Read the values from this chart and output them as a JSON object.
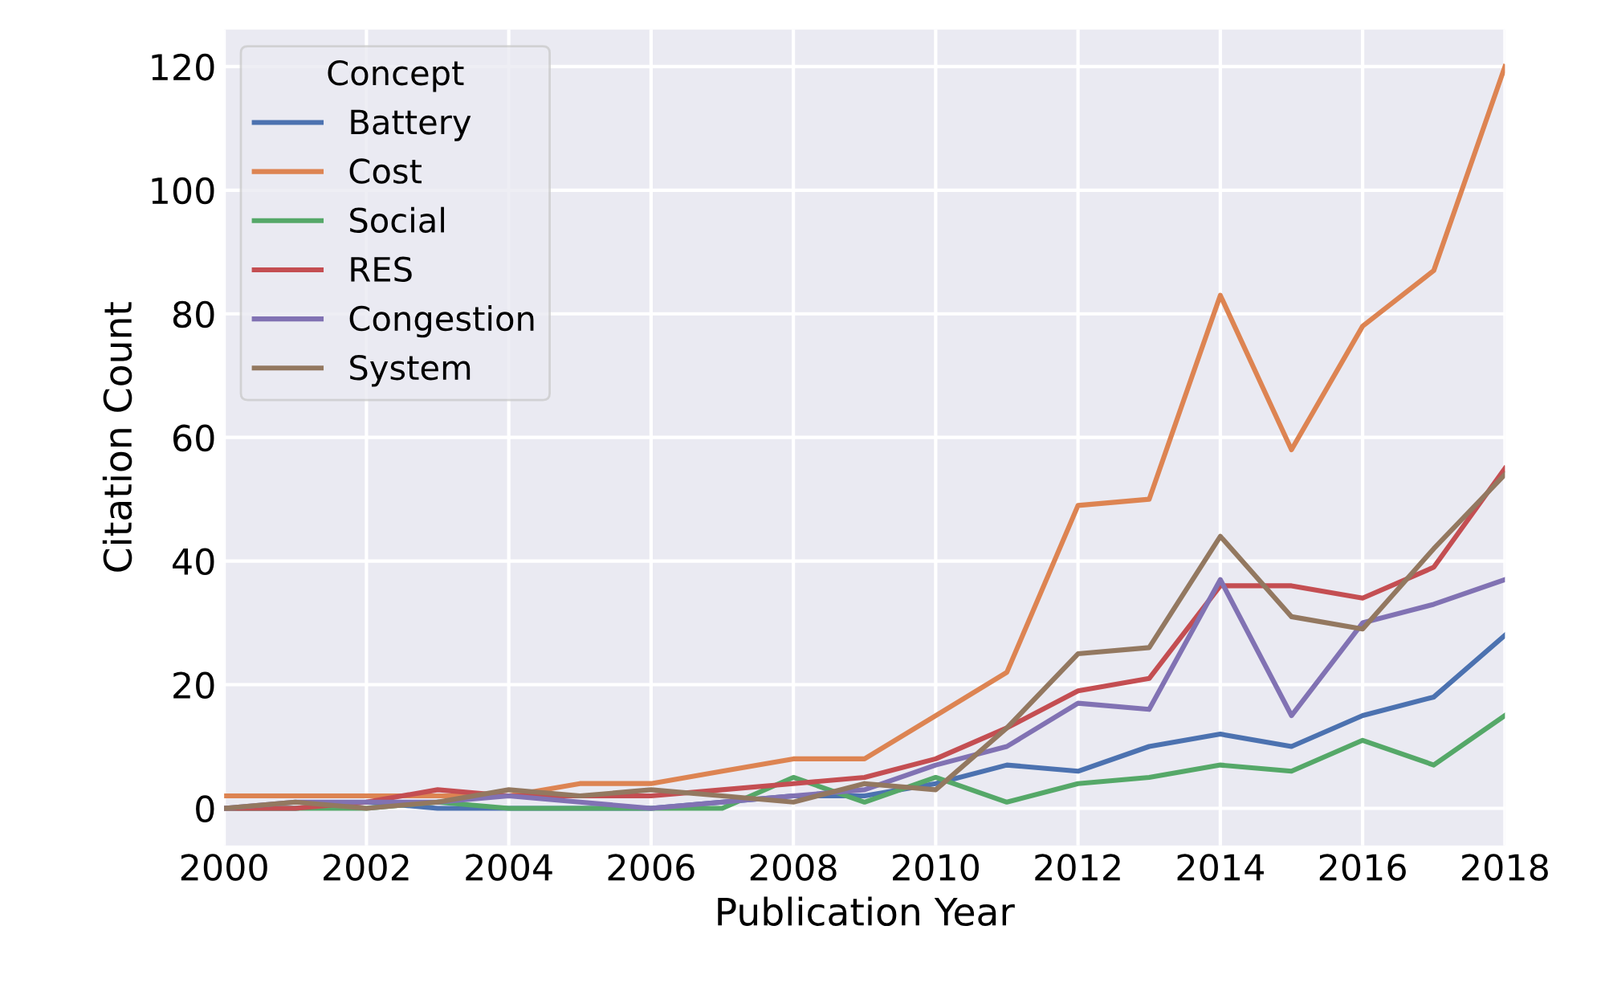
{
  "chart_data": {
    "type": "line",
    "xlabel": "Publication Year",
    "ylabel": "Citation Count",
    "legend_title": "Concept",
    "legend": "top left",
    "grid": true,
    "x": [
      2000,
      2001,
      2002,
      2003,
      2004,
      2005,
      2006,
      2007,
      2008,
      2009,
      2010,
      2011,
      2012,
      2013,
      2014,
      2015,
      2016,
      2017,
      2018
    ],
    "xlim": [
      2000,
      2018
    ],
    "xticks": [
      2000,
      2002,
      2004,
      2006,
      2008,
      2010,
      2012,
      2014,
      2016,
      2018
    ],
    "ylim": [
      -6,
      126
    ],
    "yticks": [
      0,
      20,
      40,
      60,
      80,
      100,
      120
    ],
    "series": [
      {
        "name": "Battery",
        "color": "#4c72b0",
        "values": [
          0,
          0,
          1,
          0,
          0,
          0,
          0,
          1,
          2,
          2,
          4,
          7,
          6,
          10,
          12,
          10,
          15,
          18,
          28
        ]
      },
      {
        "name": "Cost",
        "color": "#dd8452",
        "values": [
          2,
          2,
          2,
          2,
          2,
          4,
          4,
          6,
          8,
          8,
          15,
          22,
          49,
          50,
          83,
          58,
          78,
          87,
          120
        ]
      },
      {
        "name": "Social",
        "color": "#55a868",
        "values": [
          0,
          0,
          0,
          1,
          0,
          0,
          0,
          0,
          5,
          1,
          5,
          1,
          4,
          5,
          7,
          6,
          11,
          7,
          15
        ]
      },
      {
        "name": "RES",
        "color": "#c44e52",
        "values": [
          0,
          0,
          1,
          3,
          2,
          2,
          2,
          3,
          4,
          5,
          8,
          13,
          19,
          21,
          36,
          36,
          34,
          39,
          55
        ]
      },
      {
        "name": "Congestion",
        "color": "#8172b3",
        "values": [
          0,
          1,
          1,
          1,
          2,
          1,
          0,
          1,
          2,
          3,
          7,
          10,
          17,
          16,
          37,
          15,
          30,
          33,
          37
        ]
      },
      {
        "name": "System",
        "color": "#937860",
        "values": [
          0,
          1,
          0,
          1,
          3,
          2,
          3,
          2,
          1,
          4,
          3,
          13,
          25,
          26,
          44,
          31,
          29,
          42,
          54
        ]
      }
    ]
  }
}
